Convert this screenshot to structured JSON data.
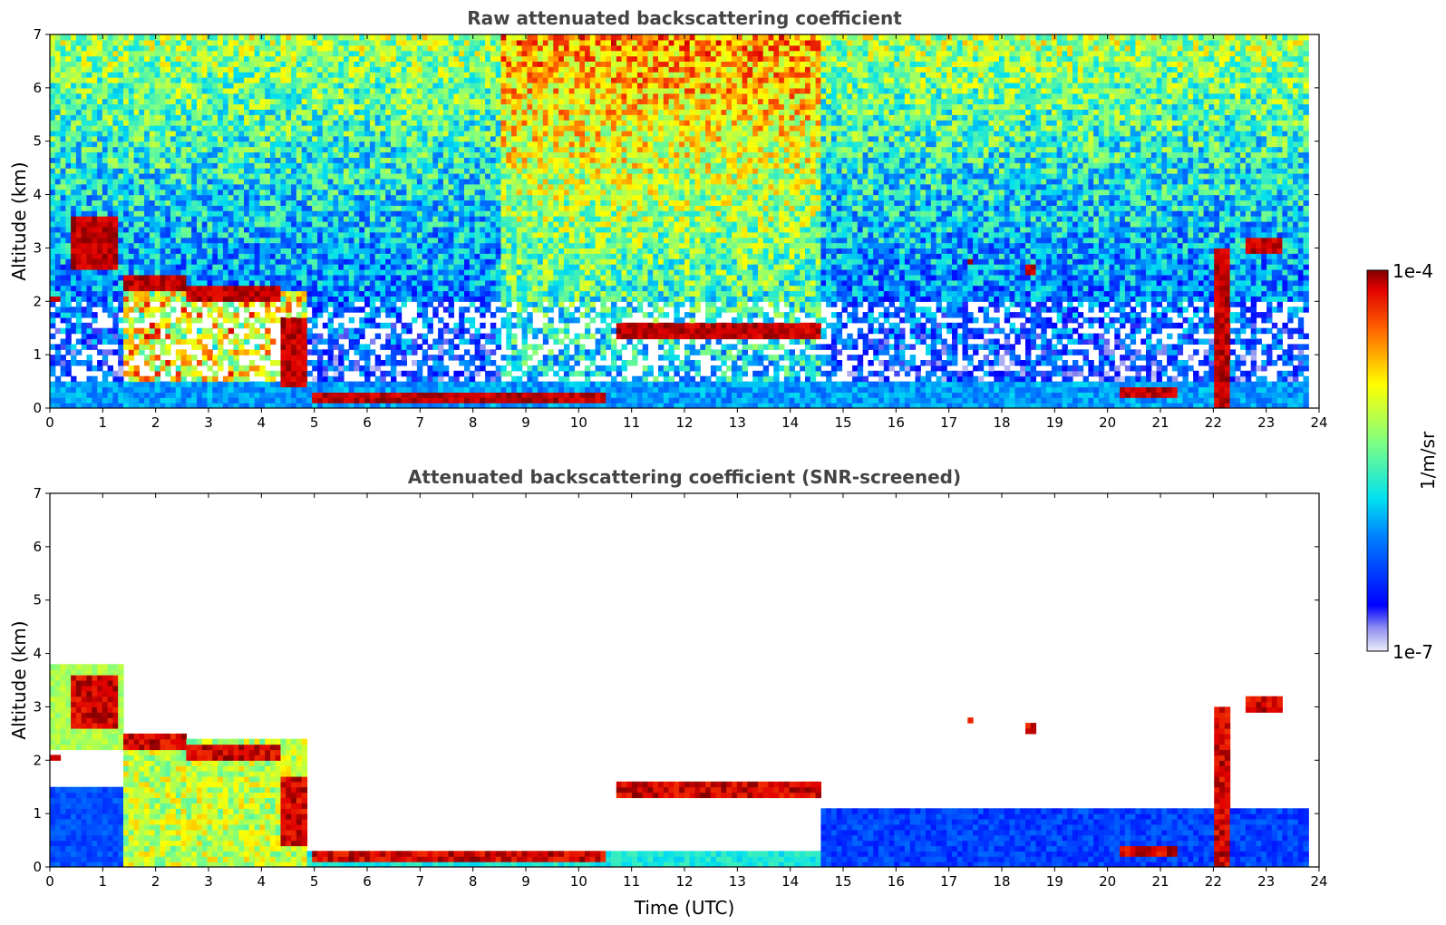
{
  "chart_data": [
    {
      "type": "heatmap",
      "title": "Raw attenuated backscattering coefficient",
      "xlabel": "",
      "ylabel": "Altitude (km)",
      "xlim": [
        0,
        24
      ],
      "ylim": [
        0,
        7
      ],
      "x_ticks": [
        "0",
        "1",
        "2",
        "3",
        "4",
        "5",
        "6",
        "7",
        "8",
        "9",
        "10",
        "11",
        "12",
        "13",
        "14",
        "15",
        "16",
        "17",
        "18",
        "19",
        "20",
        "21",
        "22",
        "23",
        "24"
      ],
      "y_ticks": [
        "0",
        "1",
        "2",
        "3",
        "4",
        "5",
        "6",
        "7"
      ],
      "data_end_time": 23.8,
      "cloud_layers": [
        {
          "t": [
            0.0,
            0.2
          ],
          "alt": [
            2.0,
            2.1
          ]
        },
        {
          "t": [
            0.4,
            1.3
          ],
          "alt": [
            2.6,
            3.6
          ]
        },
        {
          "t": [
            1.4,
            2.6
          ],
          "alt": [
            2.2,
            2.5
          ]
        },
        {
          "t": [
            2.6,
            4.4
          ],
          "alt": [
            2.0,
            2.3
          ]
        },
        {
          "t": [
            4.4,
            4.9
          ],
          "alt": [
            0.4,
            1.7
          ]
        },
        {
          "t": [
            5.0,
            10.5
          ],
          "alt": [
            0.1,
            0.25
          ]
        },
        {
          "t": [
            10.7,
            14.6
          ],
          "alt": [
            1.35,
            1.6
          ]
        },
        {
          "t": [
            20.2,
            21.3
          ],
          "alt": [
            0.2,
            0.4
          ]
        },
        {
          "t": [
            17.4,
            17.5
          ],
          "alt": [
            2.7,
            2.8
          ]
        },
        {
          "t": [
            18.4,
            18.6
          ],
          "alt": [
            2.55,
            2.7
          ]
        },
        {
          "t": [
            22.0,
            22.3
          ],
          "alt": [
            0.0,
            3.0
          ]
        },
        {
          "t": [
            22.6,
            23.3
          ],
          "alt": [
            2.9,
            3.2
          ]
        }
      ],
      "screened": false
    },
    {
      "type": "heatmap",
      "title": "Attenuated backscattering coefficient (SNR-screened)",
      "xlabel": "Time (UTC)",
      "ylabel": "Altitude (km)",
      "xlim": [
        0,
        24
      ],
      "ylim": [
        0,
        7
      ],
      "x_ticks": [
        "0",
        "1",
        "2",
        "3",
        "4",
        "5",
        "6",
        "7",
        "8",
        "9",
        "10",
        "11",
        "12",
        "13",
        "14",
        "15",
        "16",
        "17",
        "18",
        "19",
        "20",
        "21",
        "22",
        "23",
        "24"
      ],
      "y_ticks": [
        "0",
        "1",
        "2",
        "3",
        "4",
        "5",
        "6",
        "7"
      ],
      "data_end_time": 23.8,
      "screened": true
    }
  ],
  "colorbar": {
    "label": "1/m/sr",
    "max_label": "1e-4",
    "min_label": "1e-7",
    "scale": "log",
    "colormap": "jet"
  }
}
